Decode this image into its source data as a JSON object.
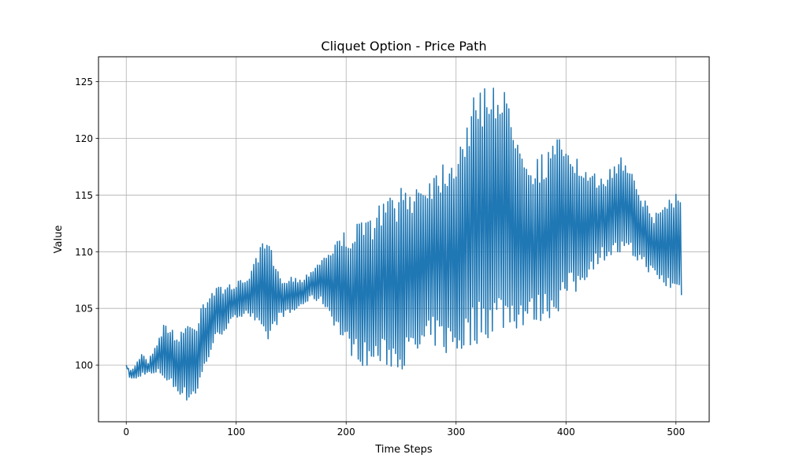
{
  "chart_data": {
    "type": "line",
    "title": "Cliquet Option - Price Path",
    "xlabel": "Time Steps",
    "ylabel": "Value",
    "xlim": [
      -25.25,
      530.25
    ],
    "ylim": [
      95.0,
      127.2
    ],
    "xticks": [
      0,
      100,
      200,
      300,
      400,
      500
    ],
    "xtick_labels": [
      "0",
      "100",
      "200",
      "300",
      "400",
      "500"
    ],
    "yticks": [
      100,
      105,
      110,
      115,
      120,
      125
    ],
    "ytick_labels": [
      "100",
      "105",
      "110",
      "115",
      "120",
      "125"
    ],
    "grid": true,
    "legend": false,
    "line_color": "#1f77b4",
    "series": [
      {
        "n_points": 506,
        "envelope": {
          "x": [
            0,
            3,
            6,
            10,
            15,
            20,
            25,
            30,
            35,
            40,
            45,
            50,
            55,
            60,
            65,
            68,
            72,
            80,
            90,
            100,
            110,
            120,
            125,
            130,
            140,
            150,
            160,
            170,
            180,
            190,
            200,
            210,
            220,
            230,
            240,
            250,
            260,
            270,
            280,
            290,
            300,
            310,
            320,
            330,
            335,
            340,
            350,
            360,
            370,
            380,
            390,
            400,
            410,
            420,
            430,
            440,
            450,
            460,
            470,
            480,
            490,
            500,
            505
          ],
          "upper": [
            100.0,
            99.6,
            99.7,
            100.5,
            101.2,
            100.3,
            101.6,
            102.6,
            103.9,
            103.6,
            102.4,
            103.3,
            104.0,
            103.6,
            104.2,
            105.8,
            106.1,
            106.8,
            107.1,
            107.3,
            107.8,
            109.8,
            111.3,
            110.8,
            107.7,
            107.9,
            107.6,
            108.7,
            109.8,
            111.0,
            112.0,
            112.5,
            113.1,
            114.2,
            115.2,
            115.6,
            116.2,
            116.9,
            117.5,
            118.5,
            119.6,
            122.2,
            124.5,
            125.5,
            125.9,
            124.9,
            123.2,
            120.7,
            118.2,
            118.9,
            119.9,
            120.5,
            118.3,
            116.8,
            116.9,
            117.3,
            118.7,
            117.9,
            114.8,
            113.4,
            114.6,
            115.6,
            115.2
          ],
          "lower": [
            100.0,
            98.9,
            98.7,
            98.7,
            99.1,
            99.3,
            99.0,
            99.2,
            98.6,
            98.1,
            97.7,
            97.3,
            96.7,
            97.0,
            97.4,
            98.5,
            99.6,
            101.9,
            103.0,
            104.0,
            104.6,
            103.0,
            101.8,
            102.0,
            104.2,
            104.4,
            105.2,
            105.8,
            105.2,
            103.3,
            101.3,
            100.3,
            99.6,
            99.8,
            99.7,
            99.6,
            100.0,
            100.6,
            101.6,
            100.8,
            100.5,
            101.1,
            101.9,
            102.4,
            102.5,
            102.9,
            103.0,
            103.2,
            103.5,
            103.9,
            104.3,
            105.5,
            106.2,
            107.8,
            109.0,
            109.5,
            109.5,
            109.3,
            108.8,
            107.6,
            106.7,
            106.2,
            105.9
          ]
        }
      }
    ]
  }
}
